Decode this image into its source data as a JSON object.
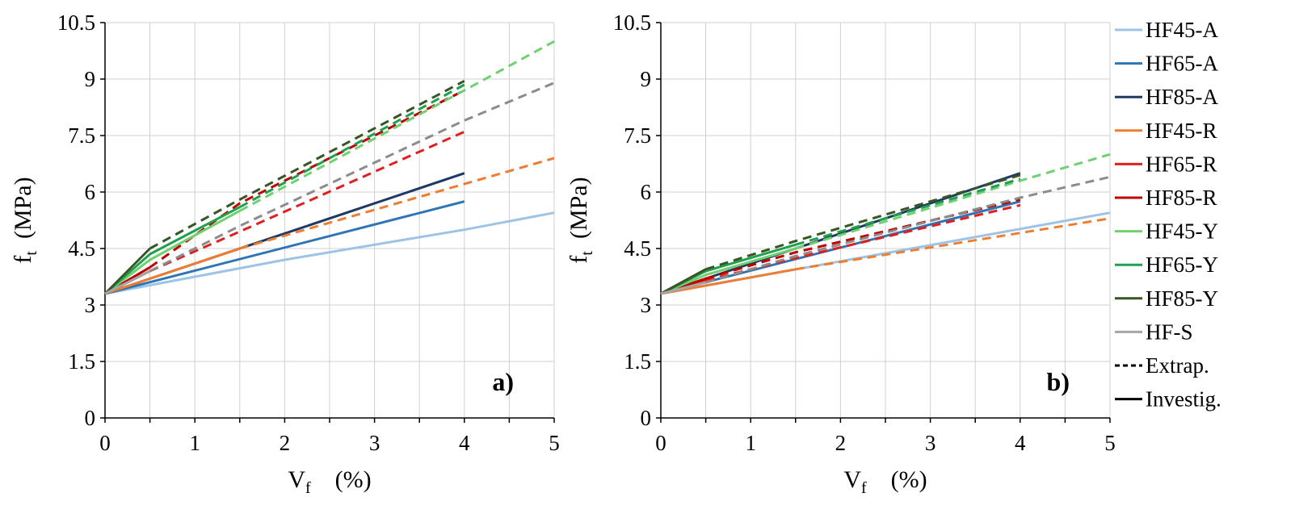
{
  "chart_data": [
    {
      "type": "line",
      "panel_label": "a)",
      "xlabel": {
        "main": "V",
        "sub": "f",
        "unit": "(%)"
      },
      "ylabel": {
        "main": "f",
        "sub": "t",
        "unit": "(MPa)"
      },
      "xlim": [
        0,
        5
      ],
      "ylim": [
        0,
        10.5
      ],
      "x_ticks": [
        "0",
        "1",
        "2",
        "3",
        "4",
        "5"
      ],
      "y_ticks": [
        "0",
        "1.5",
        "3",
        "4.5",
        "6",
        "7.5",
        "9",
        "10.5"
      ],
      "grid": true,
      "series": [
        {
          "name": "HF45-A",
          "color": "#9DC3E6",
          "style": "solid",
          "x": [
            0,
            1,
            2,
            3,
            4,
            5
          ],
          "y": [
            3.3,
            3.75,
            4.2,
            4.6,
            5.0,
            5.45
          ]
        },
        {
          "name": "HF65-A",
          "color": "#2E75B6",
          "style": "solid",
          "x": [
            0,
            4
          ],
          "y": [
            3.3,
            5.75
          ]
        },
        {
          "name": "HF85-A",
          "color": "#1F3864",
          "style": "solid",
          "x": [
            0,
            4
          ],
          "y": [
            3.3,
            6.5
          ]
        },
        {
          "name": "HF45-R",
          "color": "#ED7D31",
          "style": "solid",
          "x": [
            0,
            1.5
          ],
          "y": [
            3.3,
            4.5
          ]
        },
        {
          "name": "HF45-R",
          "color": "#ED7D31",
          "style": "dashed",
          "x": [
            1.5,
            5
          ],
          "y": [
            4.5,
            6.9
          ]
        },
        {
          "name": "HF65-R",
          "color": "#E02020",
          "style": "solid",
          "x": [
            0,
            0.5
          ],
          "y": [
            3.3,
            3.9
          ]
        },
        {
          "name": "HF65-R",
          "color": "#E02020",
          "style": "dashed",
          "x": [
            0.5,
            1.5,
            4
          ],
          "y": [
            3.9,
            4.95,
            7.6
          ]
        },
        {
          "name": "HF85-R",
          "color": "#C00000",
          "style": "solid",
          "x": [
            0,
            0.5
          ],
          "y": [
            3.3,
            4.0
          ]
        },
        {
          "name": "HF85-R",
          "color": "#C00000",
          "style": "dashed",
          "x": [
            0.5,
            1.5,
            4
          ],
          "y": [
            4.0,
            5.7,
            8.7
          ]
        },
        {
          "name": "HF45-Y",
          "color": "#70D070",
          "style": "solid",
          "x": [
            0,
            0.5,
            1.5
          ],
          "y": [
            3.3,
            4.2,
            5.5
          ]
        },
        {
          "name": "HF45-Y",
          "color": "#70D070",
          "style": "dashed",
          "x": [
            1.5,
            4,
            5
          ],
          "y": [
            5.5,
            8.7,
            10.0
          ]
        },
        {
          "name": "HF65-Y",
          "color": "#1FA050",
          "style": "solid",
          "x": [
            0,
            0.5,
            1.5
          ],
          "y": [
            3.3,
            4.35,
            5.6
          ]
        },
        {
          "name": "HF65-Y",
          "color": "#1FA050",
          "style": "dashed",
          "x": [
            1.5,
            4
          ],
          "y": [
            5.6,
            8.85
          ]
        },
        {
          "name": "HF85-Y",
          "color": "#375623",
          "style": "solid",
          "x": [
            0,
            0.5
          ],
          "y": [
            3.3,
            4.5
          ]
        },
        {
          "name": "HF85-Y",
          "color": "#375623",
          "style": "dashed",
          "x": [
            0.5,
            1.5,
            4
          ],
          "y": [
            4.5,
            5.8,
            8.95
          ]
        },
        {
          "name": "HF-S",
          "color": "#A6A6A6",
          "style": "solid",
          "x": [
            0,
            0.5
          ],
          "y": [
            3.3,
            3.9
          ]
        },
        {
          "name": "HF-S",
          "color": "#8C8C8C",
          "style": "dashed",
          "x": [
            0.5,
            1.5,
            4,
            5
          ],
          "y": [
            3.9,
            5.1,
            7.9,
            8.9
          ]
        }
      ]
    },
    {
      "type": "line",
      "panel_label": "b)",
      "xlabel": {
        "main": "V",
        "sub": "f",
        "unit": "(%)"
      },
      "ylabel": {
        "main": "f",
        "sub": "t",
        "unit": "(MPa)"
      },
      "xlim": [
        0,
        5
      ],
      "ylim": [
        0,
        10.5
      ],
      "x_ticks": [
        "0",
        "1",
        "2",
        "3",
        "4",
        "5"
      ],
      "y_ticks": [
        "0",
        "1.5",
        "3",
        "4.5",
        "6",
        "7.5",
        "9",
        "10.5"
      ],
      "grid": true,
      "series": [
        {
          "name": "HF45-A",
          "color": "#9DC3E6",
          "style": "solid",
          "x": [
            0,
            5
          ],
          "y": [
            3.3,
            5.45
          ]
        },
        {
          "name": "HF65-A",
          "color": "#2E75B6",
          "style": "solid",
          "x": [
            0,
            4
          ],
          "y": [
            3.3,
            5.75
          ]
        },
        {
          "name": "HF85-A",
          "color": "#1F3864",
          "style": "solid",
          "x": [
            0,
            4
          ],
          "y": [
            3.3,
            6.5
          ]
        },
        {
          "name": "HF45-R",
          "color": "#ED7D31",
          "style": "solid",
          "x": [
            0,
            1.5
          ],
          "y": [
            3.3,
            3.95
          ]
        },
        {
          "name": "HF45-R",
          "color": "#ED7D31",
          "style": "dashed",
          "x": [
            1.5,
            5
          ],
          "y": [
            3.95,
            5.3
          ]
        },
        {
          "name": "HF65-R",
          "color": "#E02020",
          "style": "solid",
          "x": [
            0,
            0.5
          ],
          "y": [
            3.3,
            3.65
          ]
        },
        {
          "name": "HF65-R",
          "color": "#E02020",
          "style": "dashed",
          "x": [
            0.5,
            1.5,
            4
          ],
          "y": [
            3.65,
            4.25,
            5.65
          ]
        },
        {
          "name": "HF85-R",
          "color": "#C00000",
          "style": "solid",
          "x": [
            0,
            0.5
          ],
          "y": [
            3.3,
            3.7
          ]
        },
        {
          "name": "HF85-R",
          "color": "#C00000",
          "style": "dashed",
          "x": [
            0.5,
            1.5,
            4
          ],
          "y": [
            3.7,
            4.4,
            5.8
          ]
        },
        {
          "name": "HF45-Y",
          "color": "#70D070",
          "style": "solid",
          "x": [
            0,
            0.5,
            1.5
          ],
          "y": [
            3.3,
            3.8,
            4.5
          ]
        },
        {
          "name": "HF45-Y",
          "color": "#70D070",
          "style": "dashed",
          "x": [
            1.5,
            4,
            5
          ],
          "y": [
            4.5,
            6.3,
            7.0
          ]
        },
        {
          "name": "HF65-Y",
          "color": "#1FA050",
          "style": "solid",
          "x": [
            0,
            0.5,
            1.5
          ],
          "y": [
            3.3,
            3.9,
            4.6
          ]
        },
        {
          "name": "HF65-Y",
          "color": "#1FA050",
          "style": "dashed",
          "x": [
            1.5,
            4
          ],
          "y": [
            4.6,
            6.35
          ]
        },
        {
          "name": "HF85-Y",
          "color": "#375623",
          "style": "solid",
          "x": [
            0,
            0.5
          ],
          "y": [
            3.3,
            3.95
          ]
        },
        {
          "name": "HF85-Y",
          "color": "#375623",
          "style": "dashed",
          "x": [
            0.5,
            1.5,
            4
          ],
          "y": [
            3.95,
            4.7,
            6.45
          ]
        },
        {
          "name": "HF-S",
          "color": "#A6A6A6",
          "style": "solid",
          "x": [
            0,
            0.5
          ],
          "y": [
            3.3,
            3.6
          ]
        },
        {
          "name": "HF-S",
          "color": "#8C8C8C",
          "style": "dashed",
          "x": [
            0.5,
            1.5,
            4,
            5
          ],
          "y": [
            3.6,
            4.3,
            5.85,
            6.4
          ]
        }
      ]
    }
  ],
  "legend": {
    "placement": "right",
    "items": [
      {
        "label": "HF45-A",
        "color": "#9DC3E6",
        "style": "solid"
      },
      {
        "label": "HF65-A",
        "color": "#2E75B6",
        "style": "solid"
      },
      {
        "label": "HF85-A",
        "color": "#1F3864",
        "style": "solid"
      },
      {
        "label": "HF45-R",
        "color": "#ED7D31",
        "style": "solid"
      },
      {
        "label": "HF65-R",
        "color": "#E02020",
        "style": "solid"
      },
      {
        "label": "HF85-R",
        "color": "#C00000",
        "style": "solid"
      },
      {
        "label": "HF45-Y",
        "color": "#70D070",
        "style": "solid"
      },
      {
        "label": "HF65-Y",
        "color": "#1FA050",
        "style": "solid"
      },
      {
        "label": "HF85-Y",
        "color": "#375623",
        "style": "solid"
      },
      {
        "label": "HF-S",
        "color": "#A6A6A6",
        "style": "solid"
      },
      {
        "label": "Extrap.",
        "color": "#000000",
        "style": "dashed"
      },
      {
        "label": "Investig.",
        "color": "#000000",
        "style": "solid"
      }
    ]
  }
}
